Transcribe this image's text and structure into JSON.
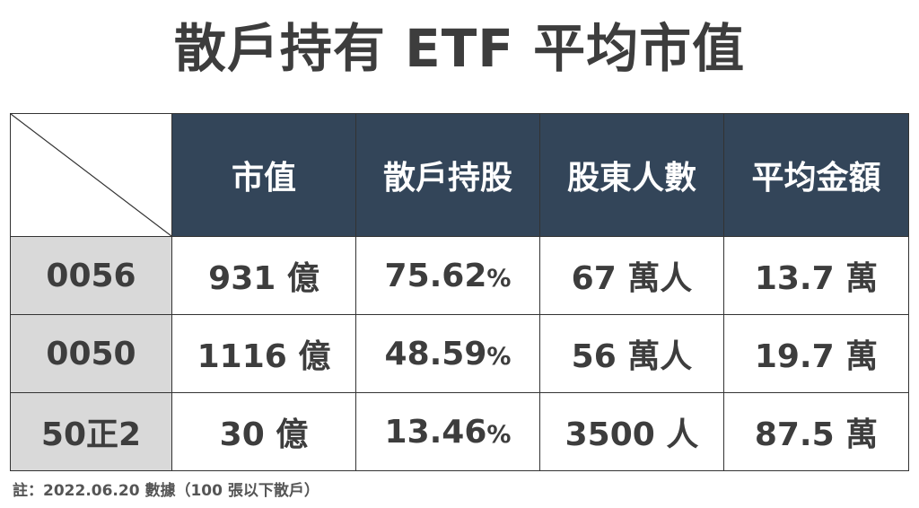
{
  "title": "散戶持有 ETF 平均市值",
  "table": {
    "headers": [
      "市值",
      "散戶持股",
      "股東人數",
      "平均金額"
    ],
    "rows": [
      {
        "code": "0056",
        "market_cap": "931 億",
        "retail_pct": "75.62",
        "pct_sign": "%",
        "holders": "67 萬人",
        "avg": "13.7 萬"
      },
      {
        "code": "0050",
        "market_cap": "1116 億",
        "retail_pct": "48.59",
        "pct_sign": "%",
        "holders": "56 萬人",
        "avg": "19.7 萬"
      },
      {
        "code": "50正2",
        "market_cap": "30 億",
        "retail_pct": "13.46",
        "pct_sign": "%",
        "holders": "3500 人",
        "avg": "87.5 萬"
      }
    ]
  },
  "note": "註：2022.06.20 數據（100 張以下散戶）",
  "colors": {
    "header_bg": "#334559",
    "code_bg": "#d9d9d9",
    "text": "#3d3d3d"
  }
}
